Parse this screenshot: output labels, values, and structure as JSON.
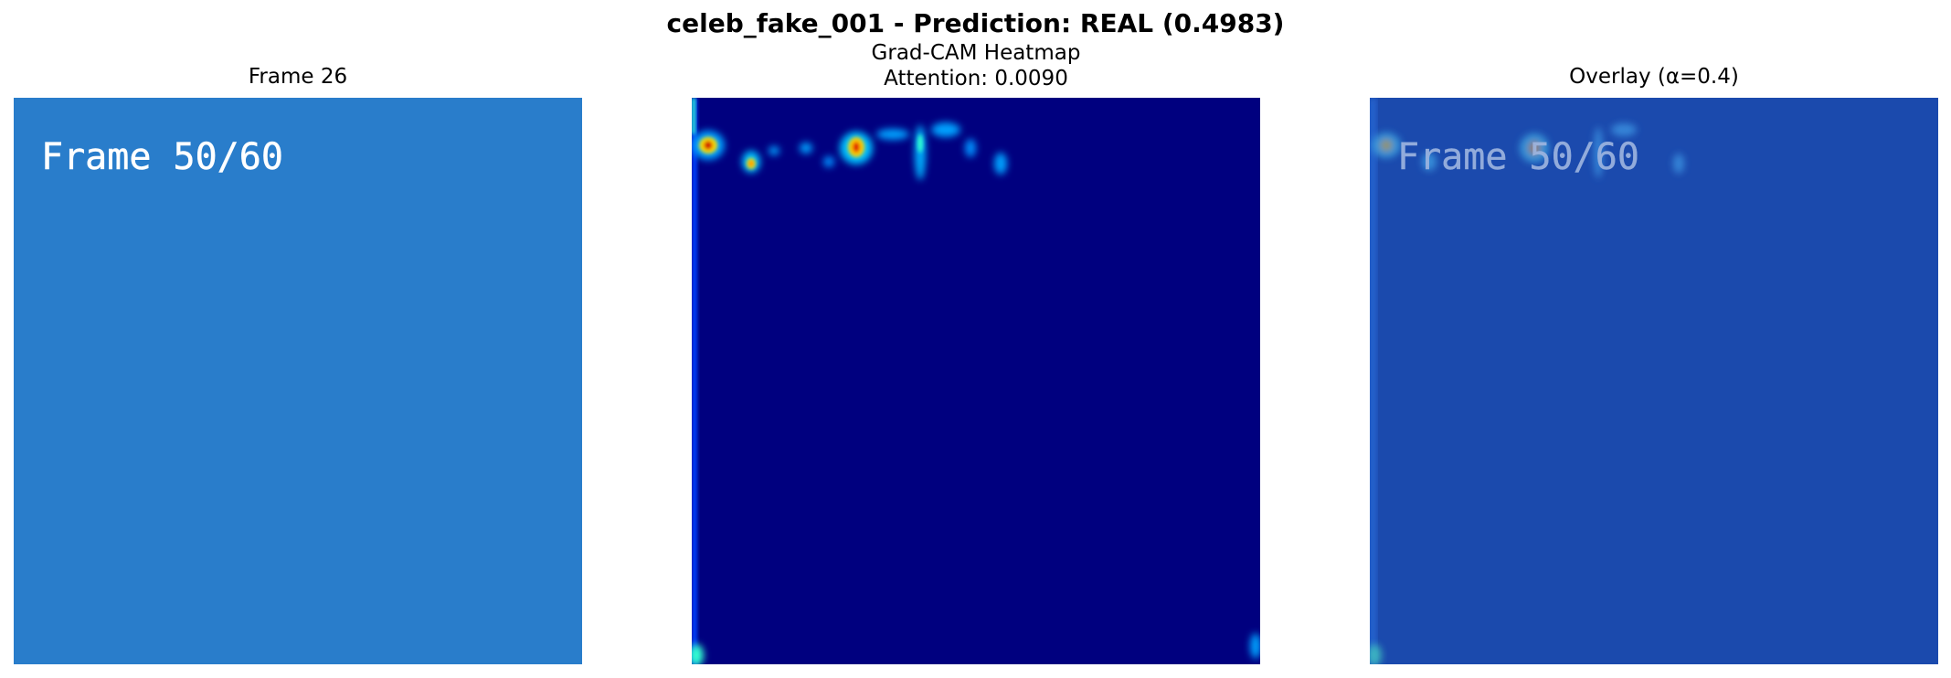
{
  "figure": {
    "suptitle": "celeb_fake_001 - Prediction: REAL (0.4983)"
  },
  "panels": [
    {
      "title": "Frame 26",
      "image_text": "Frame 50/60"
    },
    {
      "title_line1": "Grad-CAM Heatmap",
      "title_line2": "Attention: 0.0090"
    },
    {
      "title": "Overlay (α=0.4)",
      "image_text": "Frame 50/60"
    }
  ],
  "colors": {
    "frame_background": "#297dcb",
    "heatmap_background": "#00007f",
    "overlay_background": "#1b4aad"
  }
}
